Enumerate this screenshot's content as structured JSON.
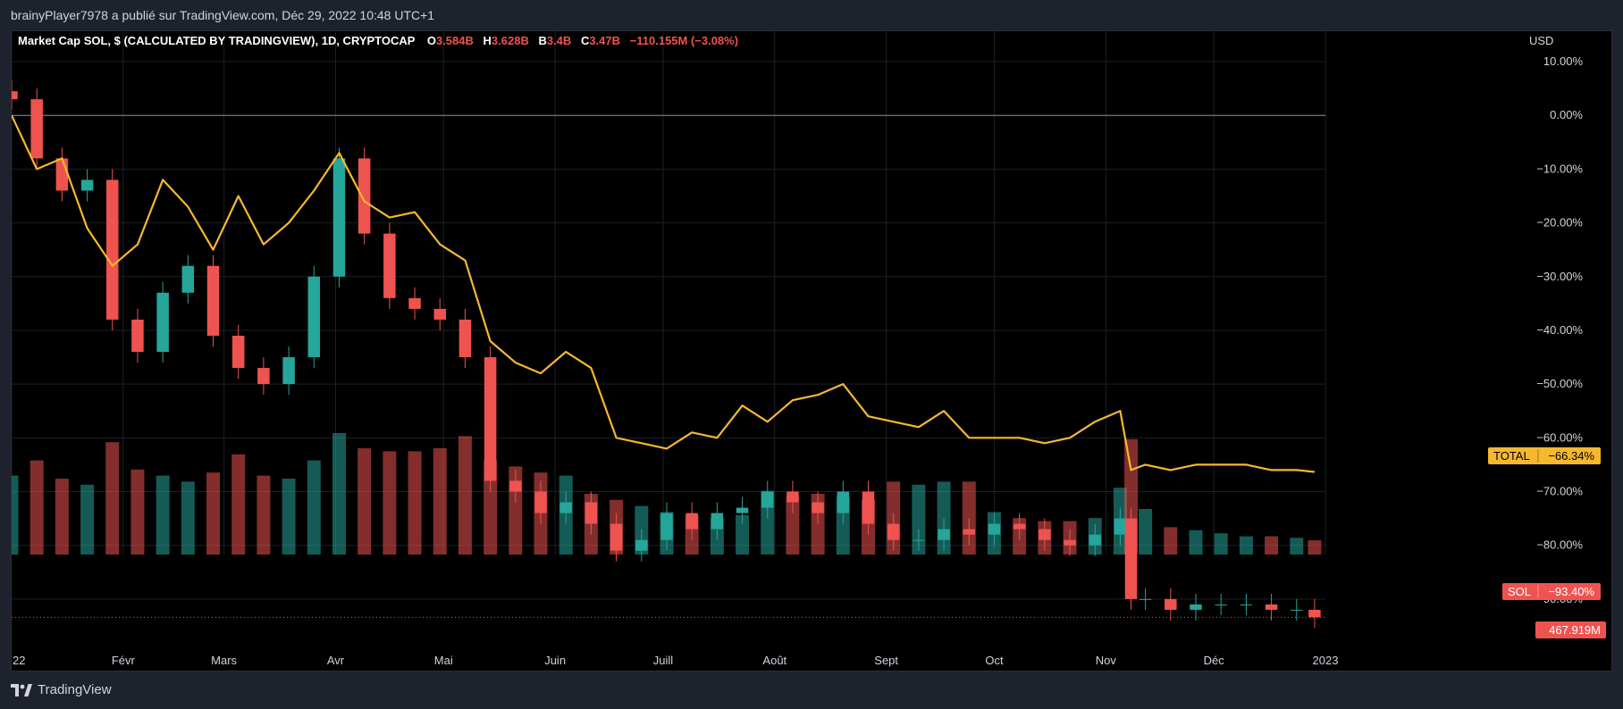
{
  "header": {
    "publisher": "brainyPlayer7978 a publié sur TradingView.com, Déc 29, 2022 10:48 UTC+1"
  },
  "legend": {
    "symbol": "Market Cap SOL, $ (CALCULATED BY TRADINGVIEW), 1D, CRYPTOCAP",
    "o_label": "O",
    "o_value": "3.584B",
    "h_label": "H",
    "h_value": "3.628B",
    "b_label": "B",
    "b_value": "3.4B",
    "c_label": "C",
    "c_value": "3.47B",
    "change": "−110.155M (−3.08%)"
  },
  "footer": {
    "brand": "TradingView"
  },
  "colors": {
    "background": "#000000",
    "grid": "#1c1f26",
    "up": "#26a69a",
    "down": "#ef5350",
    "total_line": "#f5b82e",
    "axis_text": "#d1d4dc"
  },
  "chart_data": {
    "type": "line",
    "title": "Market Cap SOL, $ (CALCULATED BY TRADINGVIEW), 1D, CRYPTOCAP",
    "y_unit": "USD",
    "scale": "percent",
    "ylim": [
      -97,
      12
    ],
    "grid": true,
    "x_ticks": [
      "22",
      "Févr",
      "Mars",
      "Avr",
      "Mai",
      "Juin",
      "Juill",
      "Août",
      "Sept",
      "Oct",
      "Nov",
      "Déc",
      "2023"
    ],
    "x_tick_dates": [
      "2022-01-01",
      "2022-02-01",
      "2022-03-01",
      "2022-04-01",
      "2022-05-01",
      "2022-06-01",
      "2022-07-01",
      "2022-08-01",
      "2022-09-01",
      "2022-10-01",
      "2022-11-01",
      "2022-12-01",
      "2023-01-01"
    ],
    "y_ticks": [
      "10.00%",
      "0.00%",
      "−10.00%",
      "−20.00%",
      "−30.00%",
      "−40.00%",
      "−50.00%",
      "−60.00%",
      "−70.00%",
      "−80.00%",
      "−90.00%"
    ],
    "y_tick_values": [
      10,
      0,
      -10,
      -20,
      -30,
      -40,
      -50,
      -60,
      -70,
      -80,
      -90
    ],
    "series": [
      {
        "name": "SOL",
        "kind": "candlestick",
        "last_label": "−93.40%",
        "last_value": -93.4,
        "x": [
          "2022-01-01",
          "2022-01-08",
          "2022-01-15",
          "2022-01-22",
          "2022-01-29",
          "2022-02-05",
          "2022-02-12",
          "2022-02-19",
          "2022-02-26",
          "2022-03-05",
          "2022-03-12",
          "2022-03-19",
          "2022-03-26",
          "2022-04-02",
          "2022-04-09",
          "2022-04-16",
          "2022-04-23",
          "2022-04-30",
          "2022-05-07",
          "2022-05-14",
          "2022-05-21",
          "2022-05-28",
          "2022-06-04",
          "2022-06-11",
          "2022-06-18",
          "2022-06-25",
          "2022-07-02",
          "2022-07-09",
          "2022-07-16",
          "2022-07-23",
          "2022-07-30",
          "2022-08-06",
          "2022-08-13",
          "2022-08-20",
          "2022-08-27",
          "2022-09-03",
          "2022-09-10",
          "2022-09-17",
          "2022-09-24",
          "2022-10-01",
          "2022-10-08",
          "2022-10-15",
          "2022-10-22",
          "2022-10-29",
          "2022-11-05",
          "2022-11-08",
          "2022-11-12",
          "2022-11-19",
          "2022-11-26",
          "2022-12-03",
          "2022-12-10",
          "2022-12-17",
          "2022-12-24",
          "2022-12-29"
        ],
        "values": [
          3,
          -8,
          -14,
          -12,
          -38,
          -44,
          -33,
          -28,
          -41,
          -47,
          -50,
          -45,
          -30,
          -8,
          -22,
          -34,
          -36,
          -38,
          -45,
          -68,
          -70,
          -74,
          -72,
          -76,
          -81,
          -79,
          -74,
          -77,
          -74,
          -73,
          -70,
          -72,
          -74,
          -70,
          -76,
          -79,
          -79,
          -77,
          -78,
          -76,
          -77,
          -79,
          -80,
          -78,
          -75,
          -90,
          -90,
          -92,
          -91,
          -91,
          -91,
          -92,
          -92,
          -93.4
        ]
      },
      {
        "name": "TOTAL",
        "kind": "line",
        "last_label": "−66.34%",
        "last_value": -66.34,
        "x": [
          "2022-01-01",
          "2022-01-08",
          "2022-01-15",
          "2022-01-22",
          "2022-01-29",
          "2022-02-05",
          "2022-02-12",
          "2022-02-19",
          "2022-02-26",
          "2022-03-05",
          "2022-03-12",
          "2022-03-19",
          "2022-03-26",
          "2022-04-02",
          "2022-04-09",
          "2022-04-16",
          "2022-04-23",
          "2022-04-30",
          "2022-05-07",
          "2022-05-14",
          "2022-05-21",
          "2022-05-28",
          "2022-06-04",
          "2022-06-11",
          "2022-06-18",
          "2022-06-25",
          "2022-07-02",
          "2022-07-09",
          "2022-07-16",
          "2022-07-23",
          "2022-07-30",
          "2022-08-06",
          "2022-08-13",
          "2022-08-20",
          "2022-08-27",
          "2022-09-03",
          "2022-09-10",
          "2022-09-17",
          "2022-09-24",
          "2022-10-01",
          "2022-10-08",
          "2022-10-15",
          "2022-10-22",
          "2022-10-29",
          "2022-11-05",
          "2022-11-08",
          "2022-11-12",
          "2022-11-19",
          "2022-11-26",
          "2022-12-03",
          "2022-12-10",
          "2022-12-17",
          "2022-12-24",
          "2022-12-29"
        ],
        "values": [
          0,
          -10,
          -8,
          -21,
          -28,
          -24,
          -12,
          -17,
          -25,
          -15,
          -24,
          -20,
          -14,
          -7,
          -16,
          -19,
          -18,
          -24,
          -27,
          -42,
          -46,
          -48,
          -44,
          -47,
          -60,
          -61,
          -62,
          -59,
          -60,
          -54,
          -57,
          -53,
          -52,
          -50,
          -56,
          -57,
          -58,
          -55,
          -60,
          -60,
          -60,
          -61,
          -60,
          -57,
          -55,
          -66,
          -65,
          -66,
          -65,
          -65,
          -65,
          -66,
          -66,
          -66.34
        ]
      },
      {
        "name": "Volume",
        "kind": "histogram",
        "last_label": "467.919M",
        "last_value": 467.919,
        "unit": "M USD",
        "x": [
          "2022-01-01",
          "2022-01-08",
          "2022-01-15",
          "2022-01-22",
          "2022-01-29",
          "2022-02-05",
          "2022-02-12",
          "2022-02-19",
          "2022-02-26",
          "2022-03-05",
          "2022-03-12",
          "2022-03-19",
          "2022-03-26",
          "2022-04-02",
          "2022-04-09",
          "2022-04-16",
          "2022-04-23",
          "2022-04-30",
          "2022-05-07",
          "2022-05-14",
          "2022-05-21",
          "2022-05-28",
          "2022-06-04",
          "2022-06-11",
          "2022-06-18",
          "2022-06-25",
          "2022-07-02",
          "2022-07-09",
          "2022-07-16",
          "2022-07-23",
          "2022-07-30",
          "2022-08-06",
          "2022-08-13",
          "2022-08-20",
          "2022-08-27",
          "2022-09-03",
          "2022-09-10",
          "2022-09-17",
          "2022-09-24",
          "2022-10-01",
          "2022-10-08",
          "2022-10-15",
          "2022-10-22",
          "2022-10-29",
          "2022-11-05",
          "2022-11-08",
          "2022-11-12",
          "2022-11-19",
          "2022-11-26",
          "2022-12-03",
          "2022-12-10",
          "2022-12-17",
          "2022-12-24",
          "2022-12-29"
        ],
        "values": [
          2600,
          3100,
          2500,
          2300,
          3700,
          2800,
          2600,
          2400,
          2700,
          3300,
          2600,
          2500,
          3100,
          4000,
          3500,
          3400,
          3400,
          3500,
          3900,
          3100,
          2900,
          2700,
          2600,
          2000,
          1800,
          1600,
          1400,
          1300,
          1200,
          1300,
          2100,
          1900,
          2000,
          1900,
          1800,
          2400,
          2300,
          2400,
          2400,
          1400,
          1200,
          1100,
          1100,
          1200,
          2200,
          3800,
          1500,
          900,
          800,
          700,
          600,
          600,
          550,
          468
        ]
      }
    ]
  }
}
